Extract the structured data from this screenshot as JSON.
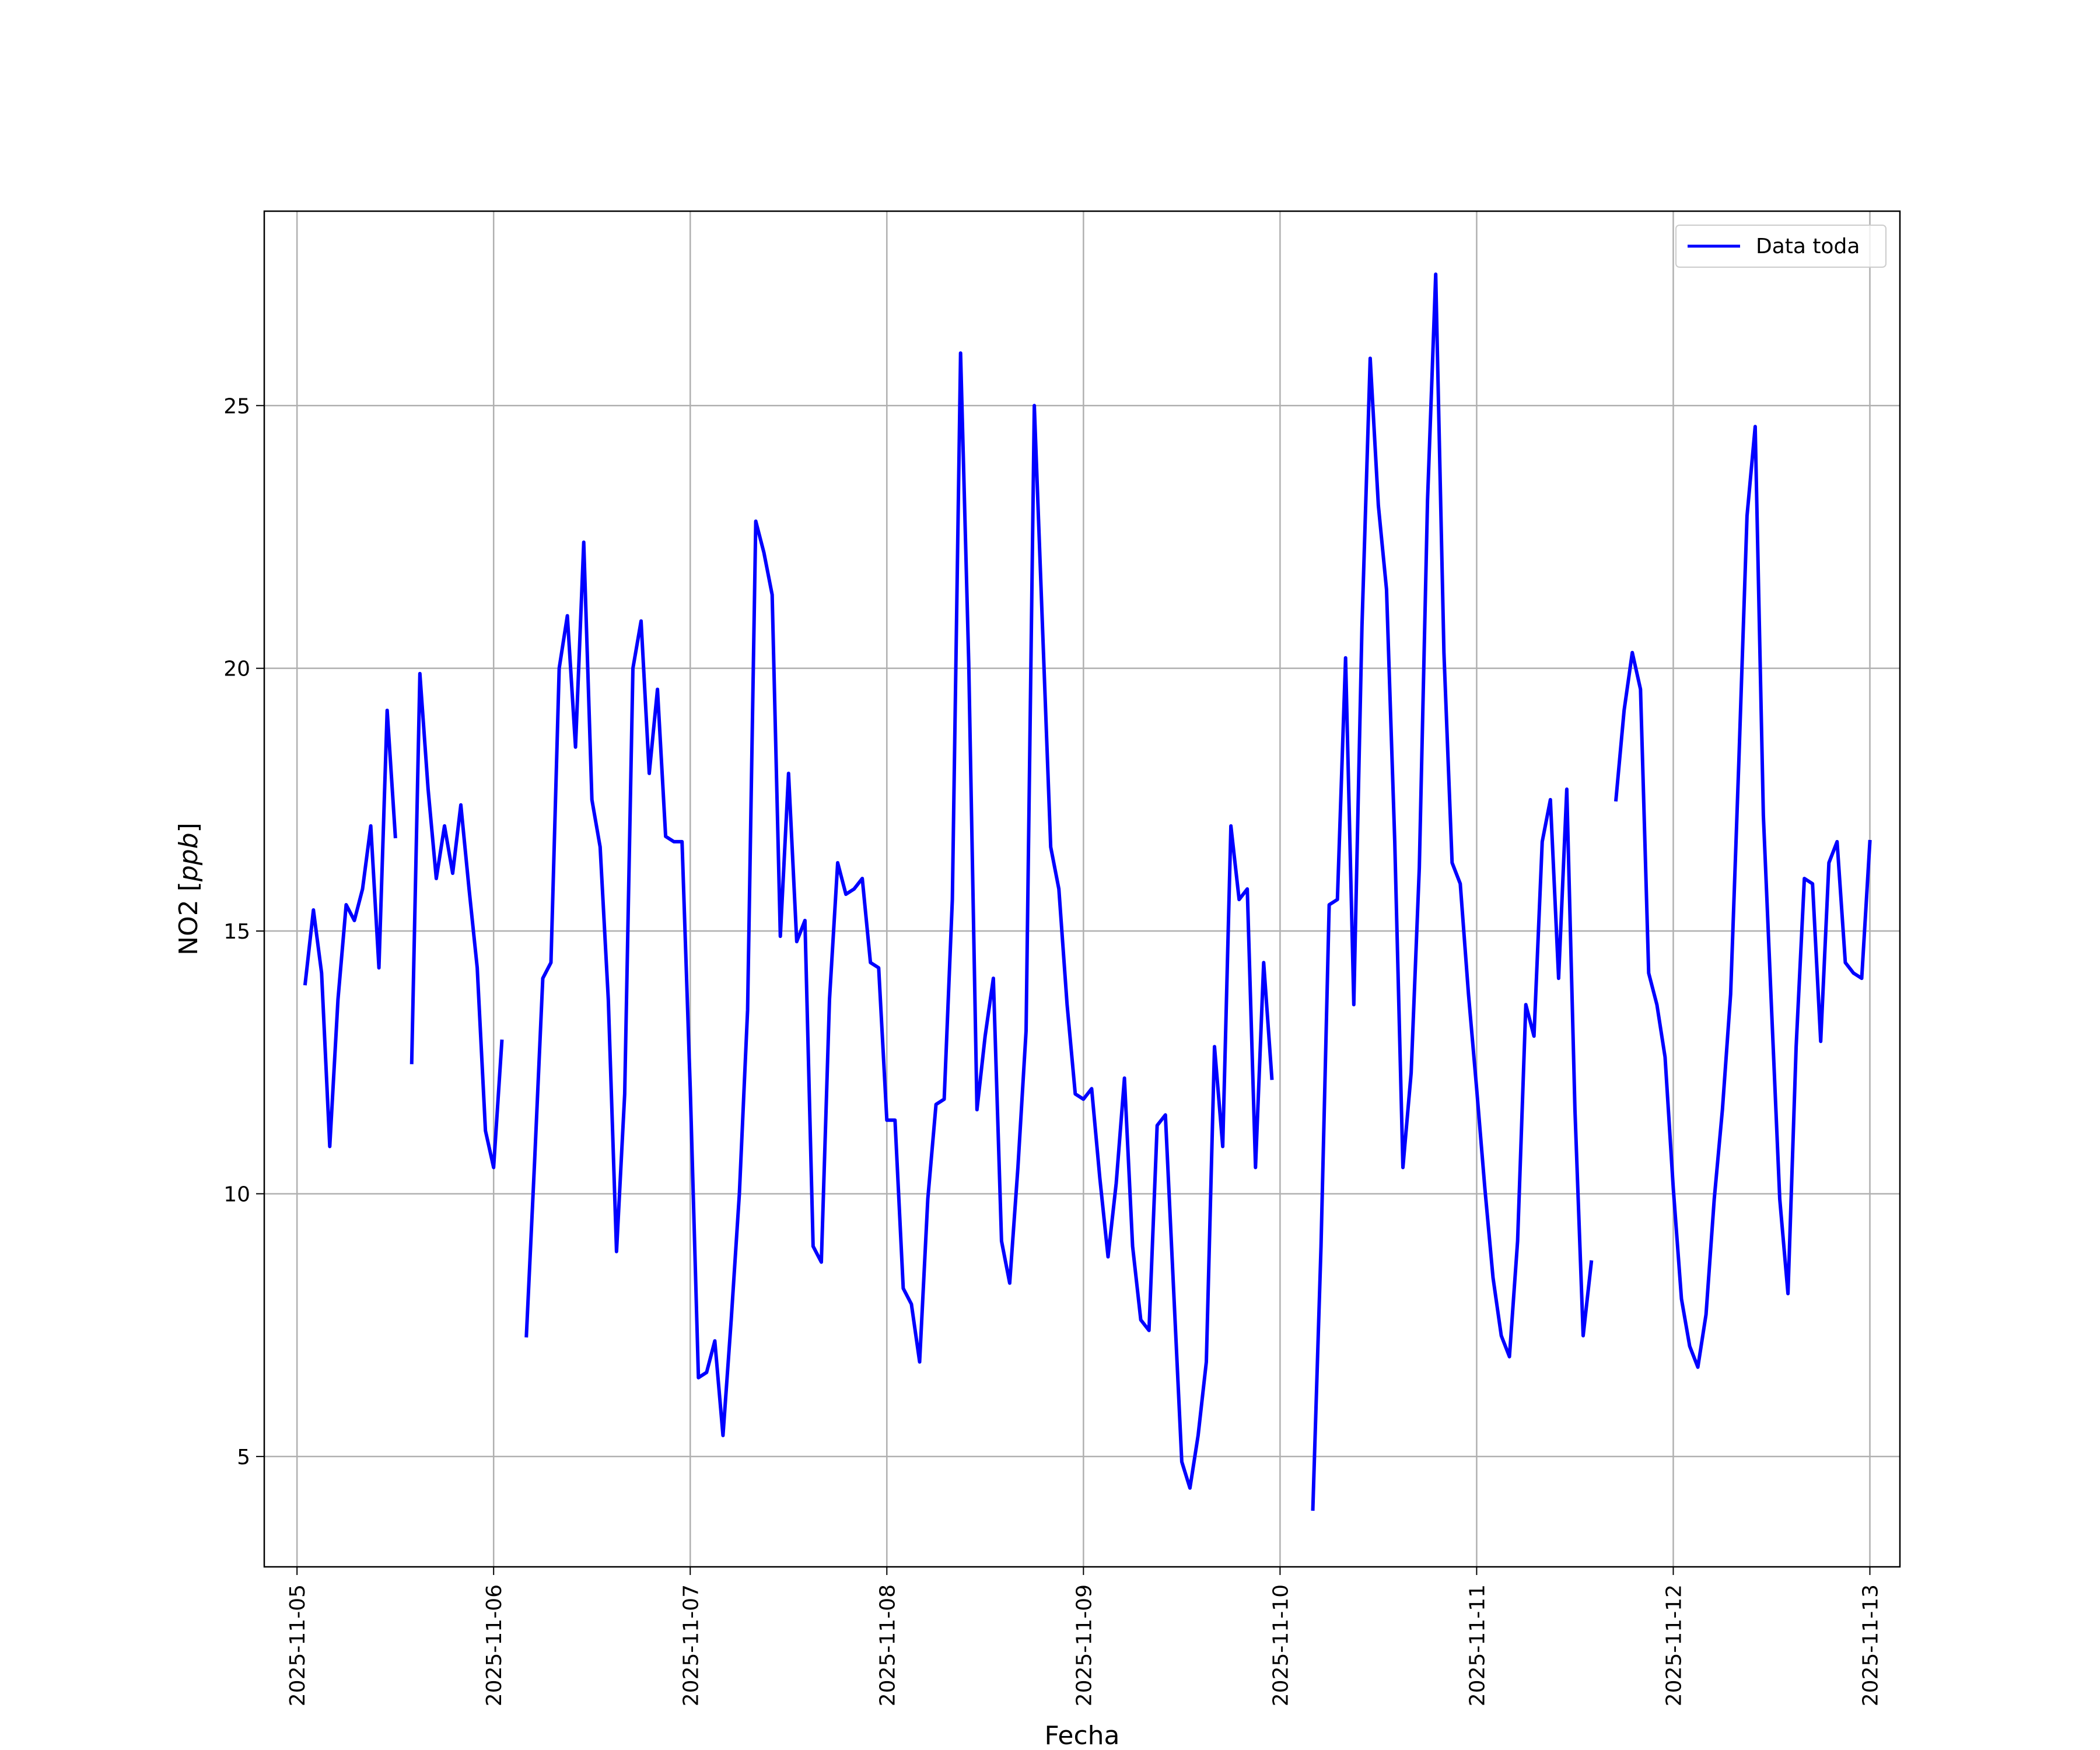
{
  "chart_data": {
    "type": "line",
    "xlabel": "Fecha",
    "ylabel": "NO2 [ppb]",
    "ylabel_main": "NO2 [",
    "ylabel_unit": "ppb",
    "ylabel_close": "]",
    "xlim": [
      "2025-11-04T20:00",
      "2025-11-13T03:40"
    ],
    "ylim": [
      2.9,
      28.7
    ],
    "x_ticks": [
      "2025-11-05",
      "2025-11-06",
      "2025-11-07",
      "2025-11-08",
      "2025-11-09",
      "2025-11-10",
      "2025-11-11",
      "2025-11-12",
      "2025-11-13"
    ],
    "y_ticks": [
      5,
      10,
      15,
      20,
      25
    ],
    "grid": true,
    "legend_position": "top-right",
    "series": [
      {
        "name": "Data toda",
        "color": "#0000ff",
        "points": [
          [
            "2025-11-05T01:00",
            14.0
          ],
          [
            "2025-11-05T02:00",
            15.4
          ],
          [
            "2025-11-05T03:00",
            14.2
          ],
          [
            "2025-11-05T04:00",
            10.9
          ],
          [
            "2025-11-05T05:00",
            13.7
          ],
          [
            "2025-11-05T06:00",
            15.5
          ],
          [
            "2025-11-05T07:00",
            15.2
          ],
          [
            "2025-11-05T08:00",
            15.8
          ],
          [
            "2025-11-05T09:00",
            17.0
          ],
          [
            "2025-11-05T10:00",
            14.3
          ],
          [
            "2025-11-05T11:00",
            19.2
          ],
          [
            "2025-11-05T12:00",
            16.8
          ],
          [
            "2025-11-05T13:00",
            null
          ],
          [
            "2025-11-05T14:00",
            12.5
          ],
          [
            "2025-11-05T15:00",
            19.9
          ],
          [
            "2025-11-05T16:00",
            17.7
          ],
          [
            "2025-11-05T17:00",
            16.0
          ],
          [
            "2025-11-05T18:00",
            17.0
          ],
          [
            "2025-11-05T19:00",
            16.1
          ],
          [
            "2025-11-05T20:00",
            17.4
          ],
          [
            "2025-11-05T21:00",
            15.8
          ],
          [
            "2025-11-05T22:00",
            14.3
          ],
          [
            "2025-11-05T23:00",
            11.2
          ],
          [
            "2025-11-06T00:00",
            10.5
          ],
          [
            "2025-11-06T01:00",
            12.9
          ],
          [
            "2025-11-06T02:00",
            null
          ],
          [
            "2025-11-06T04:00",
            7.3
          ],
          [
            "2025-11-06T05:00",
            10.6
          ],
          [
            "2025-11-06T06:00",
            14.1
          ],
          [
            "2025-11-06T07:00",
            14.4
          ],
          [
            "2025-11-06T08:00",
            20.0
          ],
          [
            "2025-11-06T09:00",
            21.0
          ],
          [
            "2025-11-06T10:00",
            18.5
          ],
          [
            "2025-11-06T11:00",
            22.4
          ],
          [
            "2025-11-06T12:00",
            17.5
          ],
          [
            "2025-11-06T13:00",
            16.6
          ],
          [
            "2025-11-06T14:00",
            13.7
          ],
          [
            "2025-11-06T15:00",
            8.9
          ],
          [
            "2025-11-06T16:00",
            11.9
          ],
          [
            "2025-11-06T17:00",
            20.0
          ],
          [
            "2025-11-06T18:00",
            20.9
          ],
          [
            "2025-11-06T19:00",
            18.0
          ],
          [
            "2025-11-06T20:00",
            19.6
          ],
          [
            "2025-11-06T21:00",
            16.8
          ],
          [
            "2025-11-06T22:00",
            16.7
          ],
          [
            "2025-11-06T23:00",
            16.7
          ],
          [
            "2025-11-07T00:00",
            12.0
          ],
          [
            "2025-11-07T01:00",
            6.5
          ],
          [
            "2025-11-07T02:00",
            6.6
          ],
          [
            "2025-11-07T03:00",
            7.2
          ],
          [
            "2025-11-07T04:00",
            5.4
          ],
          [
            "2025-11-07T05:00",
            7.6
          ],
          [
            "2025-11-07T06:00",
            10.0
          ],
          [
            "2025-11-07T07:00",
            13.5
          ],
          [
            "2025-11-07T08:00",
            22.8
          ],
          [
            "2025-11-07T09:00",
            22.2
          ],
          [
            "2025-11-07T10:00",
            21.4
          ],
          [
            "2025-11-07T11:00",
            14.9
          ],
          [
            "2025-11-07T12:00",
            18.0
          ],
          [
            "2025-11-07T13:00",
            14.8
          ],
          [
            "2025-11-07T14:00",
            15.2
          ],
          [
            "2025-11-07T15:00",
            9.0
          ],
          [
            "2025-11-07T16:00",
            8.7
          ],
          [
            "2025-11-07T17:00",
            13.7
          ],
          [
            "2025-11-07T18:00",
            16.3
          ],
          [
            "2025-11-07T19:00",
            15.7
          ],
          [
            "2025-11-07T20:00",
            15.8
          ],
          [
            "2025-11-07T21:00",
            16.0
          ],
          [
            "2025-11-07T22:00",
            14.4
          ],
          [
            "2025-11-07T23:00",
            14.3
          ],
          [
            "2025-11-08T00:00",
            11.4
          ],
          [
            "2025-11-08T01:00",
            11.4
          ],
          [
            "2025-11-08T02:00",
            8.2
          ],
          [
            "2025-11-08T03:00",
            7.9
          ],
          [
            "2025-11-08T04:00",
            6.8
          ],
          [
            "2025-11-08T05:00",
            9.9
          ],
          [
            "2025-11-08T06:00",
            11.7
          ],
          [
            "2025-11-08T07:00",
            11.8
          ],
          [
            "2025-11-08T08:00",
            15.6
          ],
          [
            "2025-11-08T09:00",
            26.0
          ],
          [
            "2025-11-08T10:00",
            20.1
          ],
          [
            "2025-11-08T11:00",
            11.6
          ],
          [
            "2025-11-08T12:00",
            13.0
          ],
          [
            "2025-11-08T13:00",
            14.1
          ],
          [
            "2025-11-08T14:00",
            9.1
          ],
          [
            "2025-11-08T15:00",
            8.3
          ],
          [
            "2025-11-08T16:00",
            10.5
          ],
          [
            "2025-11-08T17:00",
            13.1
          ],
          [
            "2025-11-08T18:00",
            25.0
          ],
          [
            "2025-11-08T19:00",
            20.8
          ],
          [
            "2025-11-08T20:00",
            16.6
          ],
          [
            "2025-11-08T21:00",
            15.8
          ],
          [
            "2025-11-08T22:00",
            13.6
          ],
          [
            "2025-11-08T23:00",
            11.9
          ],
          [
            "2025-11-09T00:00",
            11.8
          ],
          [
            "2025-11-09T01:00",
            12.0
          ],
          [
            "2025-11-09T02:00",
            10.3
          ],
          [
            "2025-11-09T03:00",
            8.8
          ],
          [
            "2025-11-09T04:00",
            10.2
          ],
          [
            "2025-11-09T05:00",
            12.2
          ],
          [
            "2025-11-09T06:00",
            9.0
          ],
          [
            "2025-11-09T07:00",
            7.6
          ],
          [
            "2025-11-09T08:00",
            7.4
          ],
          [
            "2025-11-09T09:00",
            11.3
          ],
          [
            "2025-11-09T10:00",
            11.5
          ],
          [
            "2025-11-09T11:00",
            8.2
          ],
          [
            "2025-11-09T12:00",
            4.9
          ],
          [
            "2025-11-09T13:00",
            4.4
          ],
          [
            "2025-11-09T14:00",
            5.4
          ],
          [
            "2025-11-09T15:00",
            6.8
          ],
          [
            "2025-11-09T16:00",
            12.8
          ],
          [
            "2025-11-09T17:00",
            10.9
          ],
          [
            "2025-11-09T18:00",
            17.0
          ],
          [
            "2025-11-09T19:00",
            15.6
          ],
          [
            "2025-11-09T20:00",
            15.8
          ],
          [
            "2025-11-09T21:00",
            10.5
          ],
          [
            "2025-11-09T22:00",
            14.4
          ],
          [
            "2025-11-09T23:00",
            12.2
          ],
          [
            "2025-11-10T00:00",
            null
          ],
          [
            "2025-11-10T04:00",
            4.0
          ],
          [
            "2025-11-10T05:00",
            9.0
          ],
          [
            "2025-11-10T06:00",
            15.5
          ],
          [
            "2025-11-10T07:00",
            15.6
          ],
          [
            "2025-11-10T08:00",
            20.2
          ],
          [
            "2025-11-10T09:00",
            13.6
          ],
          [
            "2025-11-10T10:00",
            20.8
          ],
          [
            "2025-11-10T11:00",
            25.9
          ],
          [
            "2025-11-10T12:00",
            23.1
          ],
          [
            "2025-11-10T13:00",
            21.5
          ],
          [
            "2025-11-10T14:00",
            16.7
          ],
          [
            "2025-11-10T15:00",
            10.5
          ],
          [
            "2025-11-10T16:00",
            12.3
          ],
          [
            "2025-11-10T17:00",
            16.2
          ],
          [
            "2025-11-10T18:00",
            23.2
          ],
          [
            "2025-11-10T19:00",
            27.5
          ],
          [
            "2025-11-10T20:00",
            20.3
          ],
          [
            "2025-11-10T21:00",
            16.3
          ],
          [
            "2025-11-10T22:00",
            15.9
          ],
          [
            "2025-11-10T23:00",
            13.8
          ],
          [
            "2025-11-11T00:00",
            12.0
          ],
          [
            "2025-11-11T01:00",
            10.1
          ],
          [
            "2025-11-11T02:00",
            8.4
          ],
          [
            "2025-11-11T03:00",
            7.3
          ],
          [
            "2025-11-11T04:00",
            6.9
          ],
          [
            "2025-11-11T05:00",
            9.1
          ],
          [
            "2025-11-11T06:00",
            13.6
          ],
          [
            "2025-11-11T07:00",
            13.0
          ],
          [
            "2025-11-11T08:00",
            16.7
          ],
          [
            "2025-11-11T09:00",
            17.5
          ],
          [
            "2025-11-11T10:00",
            14.1
          ],
          [
            "2025-11-11T11:00",
            17.7
          ],
          [
            "2025-11-11T12:00",
            11.6
          ],
          [
            "2025-11-11T13:00",
            7.3
          ],
          [
            "2025-11-11T14:00",
            8.7
          ],
          [
            "2025-11-11T15:00",
            null
          ],
          [
            "2025-11-11T17:00",
            17.5
          ],
          [
            "2025-11-11T18:00",
            19.2
          ],
          [
            "2025-11-11T19:00",
            20.3
          ],
          [
            "2025-11-11T20:00",
            19.6
          ],
          [
            "2025-11-11T21:00",
            14.2
          ],
          [
            "2025-11-11T22:00",
            13.6
          ],
          [
            "2025-11-11T23:00",
            12.6
          ],
          [
            "2025-11-12T00:00",
            10.1
          ],
          [
            "2025-11-12T01:00",
            8.0
          ],
          [
            "2025-11-12T02:00",
            7.1
          ],
          [
            "2025-11-12T03:00",
            6.7
          ],
          [
            "2025-11-12T04:00",
            7.7
          ],
          [
            "2025-11-12T05:00",
            9.9
          ],
          [
            "2025-11-12T06:00",
            11.6
          ],
          [
            "2025-11-12T07:00",
            13.8
          ],
          [
            "2025-11-12T08:00",
            18.2
          ],
          [
            "2025-11-12T09:00",
            22.9
          ],
          [
            "2025-11-12T10:00",
            24.6
          ],
          [
            "2025-11-12T11:00",
            17.2
          ],
          [
            "2025-11-12T12:00",
            13.5
          ],
          [
            "2025-11-12T13:00",
            9.9
          ],
          [
            "2025-11-12T14:00",
            8.1
          ],
          [
            "2025-11-12T15:00",
            12.8
          ],
          [
            "2025-11-12T16:00",
            16.0
          ],
          [
            "2025-11-12T17:00",
            15.9
          ],
          [
            "2025-11-12T18:00",
            12.9
          ],
          [
            "2025-11-12T19:00",
            16.3
          ],
          [
            "2025-11-12T20:00",
            16.7
          ],
          [
            "2025-11-12T21:00",
            14.4
          ],
          [
            "2025-11-12T22:00",
            14.2
          ],
          [
            "2025-11-12T23:00",
            14.1
          ],
          [
            "2025-11-13T00:00",
            16.7
          ]
        ]
      }
    ]
  }
}
